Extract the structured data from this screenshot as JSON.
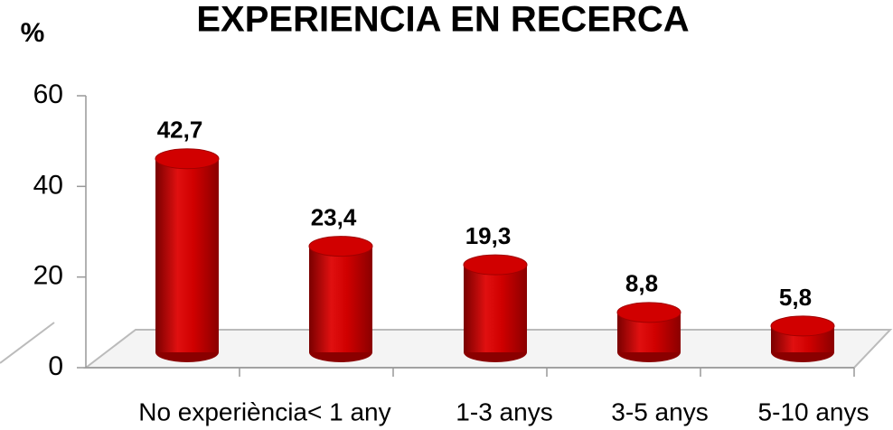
{
  "chart_data": {
    "type": "bar",
    "title": "EXPERIENCIA EN RECERCA",
    "y_label": "%",
    "categories": [
      "No experiència",
      "< 1 any",
      "1-3 anys",
      "3-5 anys",
      "5-10 anys"
    ],
    "values": [
      42.7,
      23.4,
      19.3,
      8.8,
      5.8
    ],
    "value_labels": [
      "42,7",
      "23,4",
      "19,3",
      "8,8",
      "5,8"
    ],
    "color": "#d10000",
    "ylim": [
      0,
      60
    ],
    "yticks": [
      0,
      20,
      40,
      60
    ]
  }
}
